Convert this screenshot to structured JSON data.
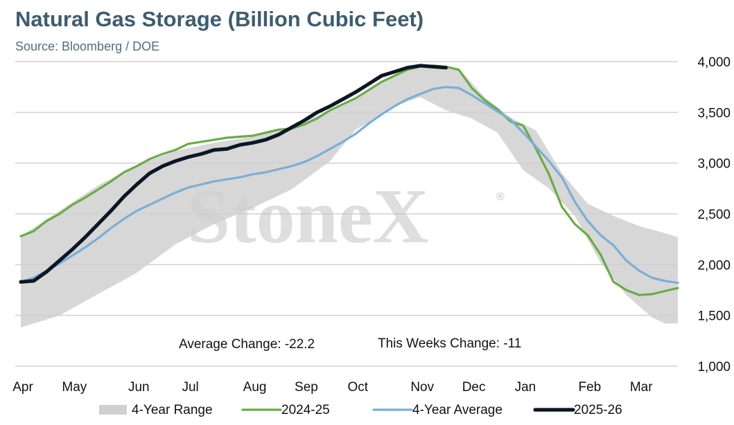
{
  "title": "Natural Gas Storage (Billion Cubic Feet)",
  "subtitle": "Source: Bloomberg / DOE",
  "watermark": "StoneX",
  "colors": {
    "range": "#d0d0d0",
    "s2024": "#6aab44",
    "avg": "#7aaed6",
    "s2025": "#0c1624",
    "grid": "#d0d0d0",
    "title": "#3d5c70"
  },
  "annotations": {
    "average_change": "Average Change: -22.2",
    "this_week_change": "This Weeks Change: -11"
  },
  "chart_data": {
    "type": "line",
    "x_unit": "week index from start of April (0 = early April, 51 = late March)",
    "ylim": [
      1000,
      4000
    ],
    "yticks": [
      {
        "v": 1000,
        "label": "1,000"
      },
      {
        "v": 1500,
        "label": "1,500"
      },
      {
        "v": 2000,
        "label": "2,000"
      },
      {
        "v": 2500,
        "label": "2,500"
      },
      {
        "v": 3000,
        "label": "3,000"
      },
      {
        "v": 3500,
        "label": "3,500"
      },
      {
        "v": 4000,
        "label": "4,000"
      }
    ],
    "xticks": [
      {
        "v": 0,
        "label": "Apr"
      },
      {
        "v": 4,
        "label": "May"
      },
      {
        "v": 9,
        "label": "Jun"
      },
      {
        "v": 13,
        "label": "Jul"
      },
      {
        "v": 18,
        "label": "Aug"
      },
      {
        "v": 22,
        "label": "Sep"
      },
      {
        "v": 26,
        "label": "Oct"
      },
      {
        "v": 31,
        "label": "Nov"
      },
      {
        "v": 35,
        "label": "Dec"
      },
      {
        "v": 39,
        "label": "Jan"
      },
      {
        "v": 44,
        "label": "Feb"
      },
      {
        "v": 48,
        "label": "Mar"
      }
    ],
    "legend": [
      "4-Year Range",
      "2024-25",
      "4-Year Average",
      "2025-26"
    ],
    "range_band": {
      "name": "4-Year Range",
      "upper": [
        [
          0,
          2280
        ],
        [
          3,
          2530
        ],
        [
          6,
          2780
        ],
        [
          9,
          2980
        ],
        [
          12,
          3120
        ],
        [
          15,
          3200
        ],
        [
          18,
          3260
        ],
        [
          21,
          3360
        ],
        [
          24,
          3520
        ],
        [
          27,
          3720
        ],
        [
          30,
          3920
        ],
        [
          32,
          3950
        ],
        [
          34,
          3930
        ],
        [
          36,
          3650
        ],
        [
          38,
          3450
        ],
        [
          40,
          3320
        ],
        [
          42,
          2900
        ],
        [
          44,
          2600
        ],
        [
          46,
          2480
        ],
        [
          48,
          2380
        ],
        [
          50,
          2310
        ],
        [
          51,
          2270
        ]
      ],
      "lower": [
        [
          0,
          1380
        ],
        [
          3,
          1500
        ],
        [
          6,
          1710
        ],
        [
          9,
          1920
        ],
        [
          12,
          2200
        ],
        [
          15,
          2400
        ],
        [
          18,
          2560
        ],
        [
          21,
          2740
        ],
        [
          24,
          3020
        ],
        [
          26,
          3330
        ],
        [
          27,
          3400
        ],
        [
          29,
          3560
        ],
        [
          31,
          3650
        ],
        [
          33,
          3520
        ],
        [
          35,
          3440
        ],
        [
          37,
          3300
        ],
        [
          39,
          2930
        ],
        [
          41,
          2750
        ],
        [
          43,
          2480
        ],
        [
          45,
          2020
        ],
        [
          47,
          1700
        ],
        [
          49,
          1480
        ],
        [
          50,
          1420
        ],
        [
          51,
          1420
        ]
      ]
    },
    "series": [
      {
        "name": "2024-25",
        "color": "#6aab44",
        "points": [
          [
            0,
            2280
          ],
          [
            1,
            2330
          ],
          [
            2,
            2430
          ],
          [
            3,
            2500
          ],
          [
            4,
            2590
          ],
          [
            5,
            2660
          ],
          [
            6,
            2740
          ],
          [
            7,
            2820
          ],
          [
            8,
            2910
          ],
          [
            9,
            2970
          ],
          [
            10,
            3040
          ],
          [
            11,
            3090
          ],
          [
            12,
            3130
          ],
          [
            13,
            3190
          ],
          [
            14,
            3210
          ],
          [
            15,
            3230
          ],
          [
            16,
            3250
          ],
          [
            17,
            3260
          ],
          [
            18,
            3270
          ],
          [
            19,
            3300
          ],
          [
            20,
            3330
          ],
          [
            21,
            3340
          ],
          [
            22,
            3380
          ],
          [
            23,
            3440
          ],
          [
            24,
            3520
          ],
          [
            25,
            3580
          ],
          [
            26,
            3640
          ],
          [
            27,
            3720
          ],
          [
            28,
            3800
          ],
          [
            29,
            3860
          ],
          [
            30,
            3920
          ],
          [
            31,
            3950
          ],
          [
            32,
            3960
          ],
          [
            33,
            3950
          ],
          [
            34,
            3920
          ],
          [
            35,
            3740
          ],
          [
            36,
            3620
          ],
          [
            37,
            3530
          ],
          [
            38,
            3410
          ],
          [
            39,
            3370
          ],
          [
            40,
            3140
          ],
          [
            41,
            2890
          ],
          [
            42,
            2570
          ],
          [
            43,
            2400
          ],
          [
            44,
            2290
          ],
          [
            45,
            2100
          ],
          [
            46,
            1830
          ],
          [
            47,
            1750
          ],
          [
            48,
            1700
          ],
          [
            49,
            1710
          ],
          [
            50,
            1740
          ],
          [
            51,
            1770
          ]
        ]
      },
      {
        "name": "4-Year Average",
        "color": "#7aaed6",
        "points": [
          [
            0,
            1830
          ],
          [
            1,
            1870
          ],
          [
            2,
            1940
          ],
          [
            3,
            2010
          ],
          [
            4,
            2090
          ],
          [
            5,
            2170
          ],
          [
            6,
            2260
          ],
          [
            7,
            2360
          ],
          [
            8,
            2450
          ],
          [
            9,
            2530
          ],
          [
            10,
            2590
          ],
          [
            11,
            2650
          ],
          [
            12,
            2710
          ],
          [
            13,
            2760
          ],
          [
            14,
            2790
          ],
          [
            15,
            2820
          ],
          [
            16,
            2840
          ],
          [
            17,
            2860
          ],
          [
            18,
            2890
          ],
          [
            19,
            2910
          ],
          [
            20,
            2940
          ],
          [
            21,
            2970
          ],
          [
            22,
            3010
          ],
          [
            23,
            3070
          ],
          [
            24,
            3140
          ],
          [
            25,
            3210
          ],
          [
            26,
            3290
          ],
          [
            27,
            3390
          ],
          [
            28,
            3480
          ],
          [
            29,
            3560
          ],
          [
            30,
            3630
          ],
          [
            31,
            3680
          ],
          [
            32,
            3730
          ],
          [
            33,
            3750
          ],
          [
            34,
            3740
          ],
          [
            35,
            3670
          ],
          [
            36,
            3590
          ],
          [
            37,
            3510
          ],
          [
            38,
            3430
          ],
          [
            39,
            3300
          ],
          [
            40,
            3160
          ],
          [
            41,
            3020
          ],
          [
            42,
            2860
          ],
          [
            43,
            2620
          ],
          [
            44,
            2430
          ],
          [
            45,
            2290
          ],
          [
            46,
            2190
          ],
          [
            47,
            2040
          ],
          [
            48,
            1940
          ],
          [
            49,
            1870
          ],
          [
            50,
            1840
          ],
          [
            51,
            1820
          ]
        ]
      },
      {
        "name": "2025-26",
        "color": "#0c1624",
        "points": [
          [
            0,
            1830
          ],
          [
            1,
            1840
          ],
          [
            2,
            1930
          ],
          [
            3,
            2040
          ],
          [
            4,
            2150
          ],
          [
            5,
            2270
          ],
          [
            6,
            2400
          ],
          [
            7,
            2530
          ],
          [
            8,
            2670
          ],
          [
            9,
            2790
          ],
          [
            10,
            2900
          ],
          [
            11,
            2970
          ],
          [
            12,
            3020
          ],
          [
            13,
            3060
          ],
          [
            14,
            3090
          ],
          [
            15,
            3130
          ],
          [
            16,
            3140
          ],
          [
            17,
            3180
          ],
          [
            18,
            3200
          ],
          [
            19,
            3230
          ],
          [
            20,
            3280
          ],
          [
            21,
            3350
          ],
          [
            22,
            3420
          ],
          [
            23,
            3500
          ],
          [
            24,
            3560
          ],
          [
            25,
            3630
          ],
          [
            26,
            3700
          ],
          [
            27,
            3780
          ],
          [
            28,
            3860
          ],
          [
            29,
            3900
          ],
          [
            30,
            3940
          ],
          [
            31,
            3960
          ],
          [
            32,
            3950
          ],
          [
            33,
            3940
          ]
        ]
      }
    ]
  }
}
